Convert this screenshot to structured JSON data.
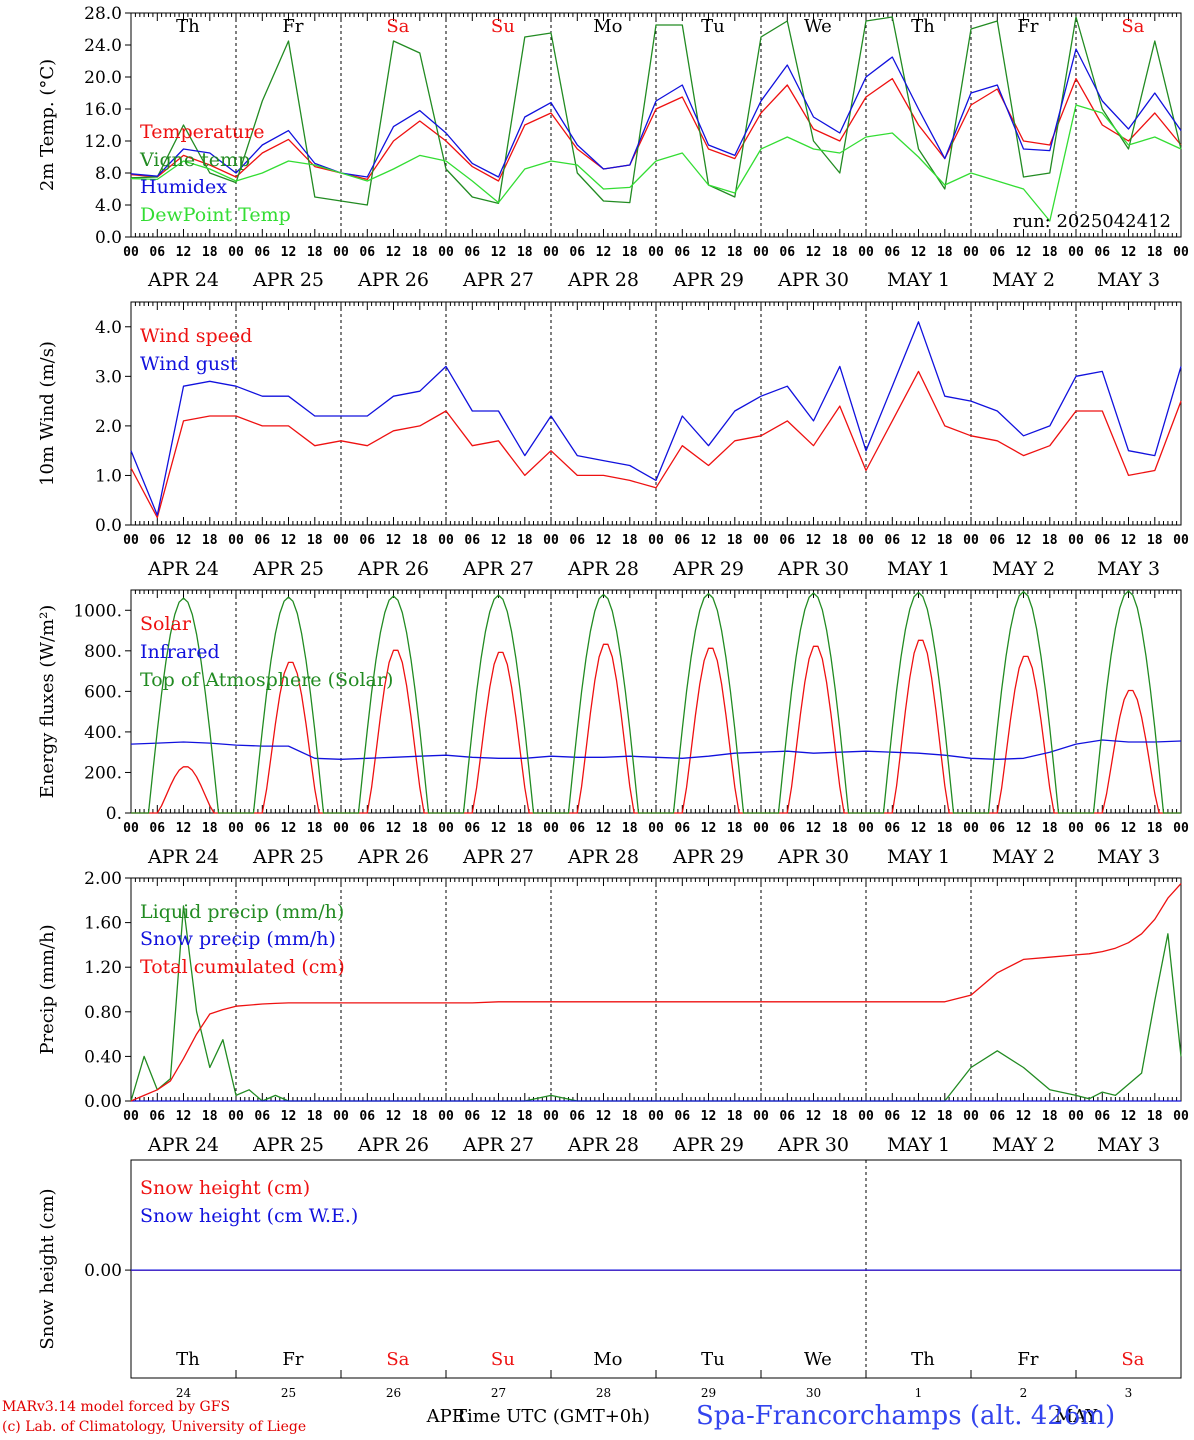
{
  "days": [
    "Th",
    "Fr",
    "Sa",
    "Su",
    "Mo",
    "Tu",
    "We",
    "Th",
    "Fr",
    "Sa"
  ],
  "weekend_day_indices": [
    2,
    3,
    9
  ],
  "dates": [
    "APR 24",
    "APR 25",
    "APR 26",
    "APR 27",
    "APR 28",
    "APR 29",
    "APR 30",
    "MAY  1",
    "MAY  2",
    "MAY  3"
  ],
  "hour_ticks": [
    "00",
    "06",
    "12",
    "18"
  ],
  "hour_tick_end": "00",
  "bottom_day_numbers": [
    "24",
    "25",
    "26",
    "27",
    "28",
    "29",
    "30",
    "1",
    "2",
    "3"
  ],
  "bottom_month_labels": {
    "apr": "APR",
    "may": "MAY"
  },
  "footer": {
    "credit_line_1": "MARv3.14 model forced by GFS",
    "credit_line_2": "(c) Lab. of Climatology, University of Liege",
    "time_axis_label": "Time UTC (GMT+0h)",
    "station": "Spa-Francorchamps (alt. 426m)"
  },
  "colors": {
    "red": "#ee1111",
    "blue": "#1111dd",
    "dark_green": "#228b22",
    "light_green": "#33dd33",
    "axis": "#000000"
  },
  "chart_data": [
    {
      "id": "temperature",
      "type": "line",
      "ylabel": "2m Temp. (°C)",
      "ylim": [
        0,
        28
      ],
      "yticks": [
        "0.0",
        "4.0",
        "8.0",
        "12.0",
        "16.0",
        "20.0",
        "24.0",
        "28.0"
      ],
      "x_hours": [
        0,
        6,
        12,
        18,
        24,
        30,
        36,
        42,
        48,
        54,
        60,
        66,
        72,
        78,
        84,
        90,
        96,
        102,
        108,
        114,
        120,
        126,
        132,
        138,
        144,
        150,
        156,
        162,
        168,
        174,
        180,
        186,
        192,
        198,
        204,
        210,
        216,
        222,
        228,
        234,
        240
      ],
      "run_label": "run: 2025042412",
      "legend_position": "left",
      "series": [
        {
          "name": "Temperature",
          "color": "red",
          "values": [
            7.8,
            7.5,
            10.2,
            9.0,
            7.5,
            10.5,
            12.2,
            8.8,
            8.0,
            7.2,
            12.0,
            14.5,
            12.0,
            8.8,
            7.0,
            14.0,
            15.5,
            11.0,
            8.5,
            9.0,
            16.0,
            17.5,
            11.0,
            9.8,
            15.5,
            19.0,
            13.5,
            12.0,
            17.5,
            19.8,
            14.0,
            9.8,
            16.5,
            18.5,
            12.0,
            11.5,
            19.8,
            14.0,
            12.0,
            15.5,
            11.5
          ]
        },
        {
          "name": "Vigne temp",
          "color": "dark_green",
          "values": [
            7.4,
            7.5,
            14.0,
            8.0,
            6.8,
            17.0,
            24.5,
            5.0,
            4.5,
            4.0,
            24.5,
            23.0,
            8.5,
            5.0,
            4.2,
            25.0,
            25.5,
            8.0,
            4.5,
            4.3,
            26.5,
            26.5,
            6.5,
            5.0,
            25.0,
            27.0,
            12.0,
            8.0,
            27.0,
            27.5,
            11.0,
            6.0,
            26.0,
            27.0,
            7.5,
            8.0,
            27.5,
            16.0,
            11.0,
            24.5,
            11.0
          ]
        },
        {
          "name": "Humidex",
          "color": "blue",
          "values": [
            7.9,
            7.6,
            11.0,
            10.5,
            8.0,
            11.5,
            13.3,
            9.2,
            8.0,
            7.5,
            13.8,
            15.8,
            13.0,
            9.2,
            7.5,
            15.0,
            16.8,
            11.5,
            8.5,
            9.0,
            17.0,
            19.0,
            11.5,
            10.2,
            17.0,
            21.5,
            15.0,
            13.0,
            20.0,
            22.5,
            16.0,
            9.8,
            18.0,
            19.0,
            11.0,
            10.8,
            23.5,
            17.0,
            13.5,
            18.0,
            13.3
          ]
        },
        {
          "name": "DewPoint Temp",
          "color": "light_green",
          "values": [
            7.3,
            7.2,
            9.5,
            8.5,
            7.0,
            8.0,
            9.5,
            9.0,
            8.0,
            7.0,
            8.5,
            10.2,
            9.5,
            7.0,
            4.3,
            8.5,
            9.5,
            9.0,
            6.0,
            6.2,
            9.5,
            10.5,
            6.5,
            5.5,
            11.0,
            12.5,
            11.0,
            10.5,
            12.5,
            13.0,
            10.0,
            6.5,
            8.0,
            7.0,
            6.0,
            2.0,
            16.5,
            15.5,
            11.5,
            12.5,
            11.0
          ]
        }
      ]
    },
    {
      "id": "wind",
      "type": "line",
      "ylabel": "10m Wind (m/s)",
      "ylim": [
        0,
        4.5
      ],
      "yticks": [
        "0.0",
        "1.0",
        "2.0",
        "3.0",
        "4.0"
      ],
      "x_hours": [
        0,
        6,
        12,
        18,
        24,
        30,
        36,
        42,
        48,
        54,
        60,
        66,
        72,
        78,
        84,
        90,
        96,
        102,
        108,
        114,
        120,
        126,
        132,
        138,
        144,
        150,
        156,
        162,
        168,
        174,
        180,
        186,
        192,
        198,
        204,
        210,
        216,
        222,
        228,
        234,
        240
      ],
      "legend_position": "left",
      "series": [
        {
          "name": "Wind speed",
          "color": "red",
          "values": [
            1.15,
            0.15,
            2.1,
            2.2,
            2.2,
            2.0,
            2.0,
            1.6,
            1.7,
            1.6,
            1.9,
            2.0,
            2.3,
            1.6,
            1.7,
            1.0,
            1.5,
            1.0,
            1.0,
            0.9,
            0.75,
            1.6,
            1.2,
            1.7,
            1.8,
            2.1,
            1.6,
            2.4,
            1.1,
            2.1,
            3.1,
            2.0,
            1.8,
            1.7,
            1.4,
            1.6,
            2.3,
            2.3,
            1.0,
            1.1,
            2.5
          ]
        },
        {
          "name": "Wind gust",
          "color": "blue",
          "values": [
            1.5,
            0.2,
            2.8,
            2.9,
            2.8,
            2.6,
            2.6,
            2.2,
            2.2,
            2.2,
            2.6,
            2.7,
            3.2,
            2.3,
            2.3,
            1.4,
            2.2,
            1.4,
            1.3,
            1.2,
            0.9,
            2.2,
            1.6,
            2.3,
            2.6,
            2.8,
            2.1,
            3.2,
            1.5,
            2.8,
            4.1,
            2.6,
            2.5,
            2.3,
            1.8,
            2.0,
            3.0,
            3.1,
            1.5,
            1.4,
            3.2
          ]
        }
      ]
    },
    {
      "id": "energy",
      "type": "line",
      "ylabel": "Energy fluxes (W/m²)",
      "ylim": [
        0,
        1100
      ],
      "yticks": [
        "0.",
        "200.",
        "400.",
        "600.",
        "800.",
        "1000."
      ],
      "x_hours": [
        0,
        6,
        12,
        18,
        24,
        30,
        36,
        42,
        48,
        54,
        60,
        66,
        72,
        78,
        84,
        90,
        96,
        102,
        108,
        114,
        120,
        126,
        132,
        138,
        144,
        150,
        156,
        162,
        168,
        174,
        180,
        186,
        192,
        198,
        204,
        210,
        216,
        222,
        228,
        234,
        240
      ],
      "peak_hour_of_day": 12,
      "legend_position": "left",
      "series": [
        {
          "name": "Solar",
          "color": "red",
          "daily_peak_values": [
            230,
            750,
            810,
            800,
            840,
            820,
            830,
            860,
            780,
            610
          ]
        },
        {
          "name": "Infrared",
          "color": "blue",
          "values": [
            340,
            345,
            350,
            345,
            335,
            330,
            330,
            270,
            265,
            270,
            275,
            280,
            285,
            275,
            270,
            270,
            280,
            275,
            275,
            280,
            275,
            270,
            280,
            295,
            300,
            305,
            295,
            300,
            305,
            300,
            295,
            285,
            270,
            265,
            270,
            300,
            340,
            360,
            350,
            350,
            355
          ]
        },
        {
          "name": "Top of Atmosphere (Solar)",
          "color": "dark_green",
          "daily_peak_values": [
            1060,
            1065,
            1070,
            1075,
            1078,
            1082,
            1085,
            1088,
            1092,
            1095
          ]
        }
      ]
    },
    {
      "id": "precip",
      "type": "line",
      "ylabel": "Precip (mm/h)",
      "ylim": [
        0,
        2.0
      ],
      "yticks": [
        "0.00",
        "0.40",
        "0.80",
        "1.20",
        "1.60",
        "2.00"
      ],
      "x_hours": [
        0,
        3,
        6,
        9,
        12,
        15,
        18,
        21,
        24,
        27,
        30,
        33,
        36,
        42,
        48,
        54,
        60,
        66,
        72,
        78,
        84,
        90,
        96,
        102,
        108,
        114,
        120,
        126,
        132,
        138,
        144,
        150,
        156,
        162,
        168,
        174,
        180,
        186,
        192,
        198,
        204,
        210,
        216,
        219,
        222,
        225,
        228,
        231,
        234,
        237,
        240
      ],
      "legend_position": "left",
      "series": [
        {
          "name": "Liquid precip (mm/h)",
          "color": "dark_green",
          "values": [
            0,
            0.4,
            0.1,
            0.2,
            1.75,
            0.8,
            0.3,
            0.55,
            0.05,
            0.1,
            0,
            0.05,
            0,
            0,
            0,
            0,
            0,
            0,
            0,
            0,
            0,
            0,
            0.05,
            0,
            0,
            0,
            0,
            0,
            0,
            0,
            0,
            0,
            0,
            0,
            0,
            0,
            0,
            0,
            0.3,
            0.45,
            0.3,
            0.1,
            0.05,
            0.02,
            0.08,
            0.05,
            0.15,
            0.25,
            0.9,
            1.5,
            0.4
          ]
        },
        {
          "name": "Snow precip (mm/h)",
          "color": "blue",
          "values": [
            0,
            0,
            0,
            0,
            0,
            0,
            0,
            0,
            0,
            0,
            0,
            0,
            0,
            0,
            0,
            0,
            0,
            0,
            0,
            0,
            0,
            0,
            0,
            0,
            0,
            0,
            0,
            0,
            0,
            0,
            0,
            0,
            0,
            0,
            0,
            0,
            0,
            0,
            0,
            0,
            0,
            0,
            0,
            0,
            0,
            0,
            0,
            0,
            0,
            0,
            0
          ]
        },
        {
          "name": "Total cumulated (cm)",
          "color": "red",
          "values": [
            0,
            0.05,
            0.1,
            0.18,
            0.38,
            0.6,
            0.78,
            0.82,
            0.85,
            0.86,
            0.87,
            0.875,
            0.88,
            0.88,
            0.88,
            0.88,
            0.88,
            0.88,
            0.88,
            0.88,
            0.89,
            0.89,
            0.89,
            0.89,
            0.89,
            0.89,
            0.89,
            0.89,
            0.89,
            0.89,
            0.89,
            0.89,
            0.89,
            0.89,
            0.89,
            0.89,
            0.89,
            0.89,
            0.95,
            1.15,
            1.27,
            1.29,
            1.31,
            1.32,
            1.34,
            1.37,
            1.42,
            1.5,
            1.63,
            1.82,
            1.95
          ]
        }
      ]
    },
    {
      "id": "snow",
      "type": "line",
      "ylabel": "Snow height (cm)",
      "yticks": [
        "0.00"
      ],
      "legend_position": "left",
      "series": [
        {
          "name": "Snow height (cm)",
          "color": "red",
          "values": [
            0,
            0
          ]
        },
        {
          "name": "Snow height (cm W.E.)",
          "color": "blue",
          "values": [
            0,
            0
          ]
        }
      ]
    }
  ]
}
